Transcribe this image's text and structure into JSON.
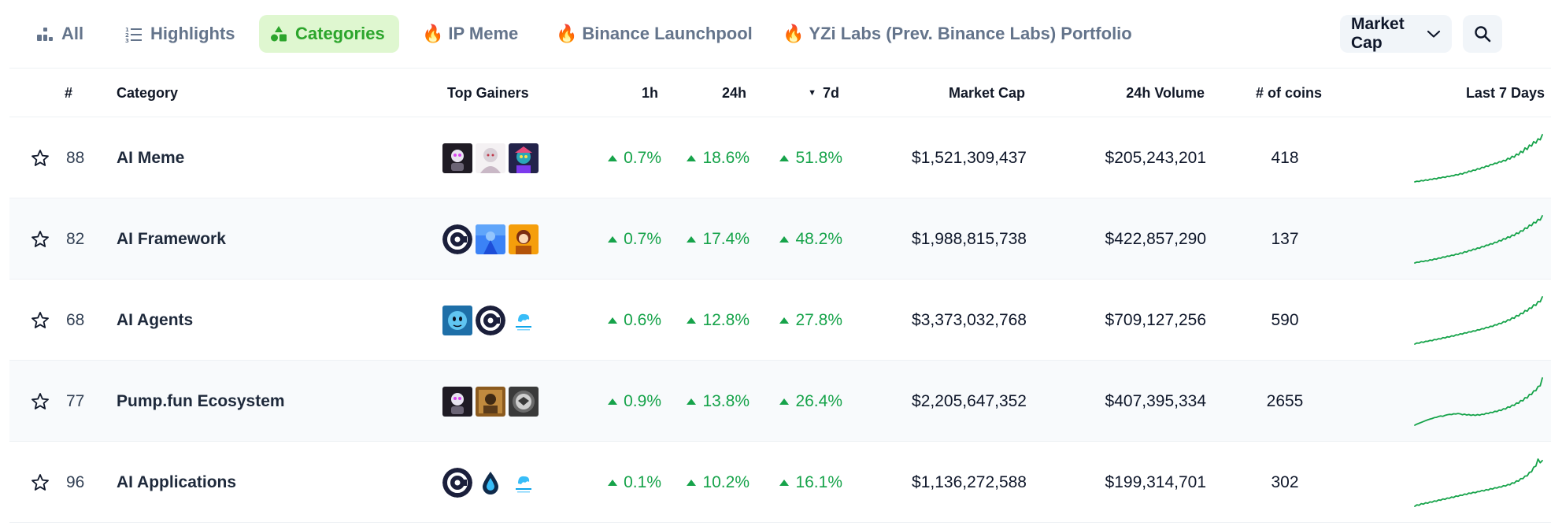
{
  "tabs": [
    {
      "label": "All",
      "icon": "bar-chart-icon",
      "active": false
    },
    {
      "label": "Highlights",
      "icon": "list-ordered-icon",
      "active": false
    },
    {
      "label": "Categories",
      "icon": "shapes-icon",
      "active": true
    },
    {
      "label": "IP Meme",
      "icon": "fire-icon",
      "active": false
    },
    {
      "label": "Binance Launchpool",
      "icon": "fire-icon",
      "active": false
    },
    {
      "label": "YZi Labs (Prev. Binance Labs) Portfolio",
      "icon": "fire-icon",
      "active": false
    }
  ],
  "sort_select": {
    "label": "Market Cap",
    "icon": "chevron-down-icon"
  },
  "search": {
    "icon": "search-icon"
  },
  "colors": {
    "accent": "#2ca52c",
    "accent_bg": "#dff7d0",
    "positive": "#16a34a",
    "muted": "#64748b"
  },
  "table": {
    "headers": {
      "rank": "#",
      "category": "Category",
      "top_gainers": "Top Gainers",
      "h1": "1h",
      "h24": "24h",
      "d7": "7d",
      "d7_sort_indicator": "▼",
      "market_cap": "Market Cap",
      "volume_24h": "24h Volume",
      "coins": "# of coins",
      "last_7_days": "Last 7 Days"
    },
    "rows": [
      {
        "rank": "88",
        "category": "AI Meme",
        "h1": "0.7%",
        "h24": "18.6%",
        "d7": "51.8%",
        "market_cap": "$1,521,309,437",
        "volume": "$205,243,201",
        "coins": "418",
        "gainer_icons": [
          "coin-logo-dark-robot",
          "coin-logo-anime-girl",
          "coin-logo-cyber-character"
        ],
        "sparkline": [
          2,
          3,
          2.6,
          4,
          3.5,
          5,
          4.2,
          6,
          5.5,
          7,
          6.2,
          8,
          7.5,
          9,
          8.4,
          10,
          9.6,
          11,
          10.8,
          12.5,
          12,
          14,
          13.2,
          15.5,
          15,
          17.6,
          16.8,
          19,
          18.5,
          21,
          20.2,
          23,
          22.5,
          25,
          24.2,
          27,
          26.8,
          29,
          28.5,
          31,
          30.4,
          33,
          32.2,
          36,
          34.8,
          39,
          37.5,
          42,
          40.8,
          46,
          44.2,
          51,
          48.6,
          55,
          53.4,
          60,
          57.8,
          64,
          62.5,
          70
        ]
      },
      {
        "rank": "82",
        "category": "AI Framework",
        "h1": "0.7%",
        "h24": "17.4%",
        "d7": "48.2%",
        "market_cap": "$1,988,815,738",
        "volume": "$422,857,290",
        "coins": "137",
        "gainer_icons": [
          "coin-logo-c-circle",
          "coin-logo-blue-figure",
          "coin-logo-orange-character"
        ],
        "sparkline": [
          2,
          3.2,
          3,
          4.5,
          4,
          5.2,
          4.8,
          6.5,
          6,
          7.8,
          7.2,
          9,
          8.6,
          10.5,
          10,
          11.8,
          11.4,
          13,
          12.6,
          14.5,
          14,
          16,
          15.4,
          17.8,
          17.2,
          19.5,
          19,
          21.4,
          20.8,
          23,
          22.6,
          25,
          24.5,
          27,
          26.8,
          29,
          28.4,
          31,
          30.6,
          33.5,
          32.8,
          36,
          35.2,
          38.5,
          37.6,
          41,
          40.2,
          44,
          43,
          47,
          46.5,
          51,
          50.2,
          55,
          54,
          59,
          58,
          63,
          62,
          68
        ]
      },
      {
        "rank": "68",
        "category": "AI Agents",
        "h1": "0.6%",
        "h24": "12.8%",
        "d7": "27.8%",
        "market_cap": "$3,373,032,768",
        "volume": "$709,127,256",
        "coins": "590",
        "gainer_icons": [
          "coin-logo-blue-alien",
          "coin-logo-c-circle",
          "coin-logo-brain-text"
        ],
        "sparkline": [
          2,
          3.5,
          3.2,
          5,
          4.4,
          6,
          5.8,
          7.2,
          6.6,
          8.5,
          8,
          9.6,
          9.2,
          11,
          10.5,
          12.2,
          11.8,
          13.6,
          13,
          15,
          14.6,
          16.4,
          16,
          17.8,
          17.4,
          19.2,
          18.8,
          20.5,
          20.2,
          22,
          21.8,
          23.6,
          23.2,
          25.4,
          25,
          27,
          26.6,
          29,
          28.6,
          31,
          30.6,
          33.4,
          32.8,
          36,
          35.4,
          38.8,
          38,
          42,
          41.2,
          45,
          44.5,
          49,
          48,
          52.5,
          52,
          57,
          56,
          61.5,
          61,
          68
        ]
      },
      {
        "rank": "77",
        "category": "Pump.fun Ecosystem",
        "h1": "0.9%",
        "h24": "13.8%",
        "d7": "26.4%",
        "market_cap": "$2,205,647,352",
        "volume": "$407,395,334",
        "coins": "2655",
        "gainer_icons": [
          "coin-logo-dark-robot",
          "coin-logo-golden-frame",
          "coin-logo-seal-emblem"
        ],
        "sparkline": [
          2,
          3.5,
          4.8,
          6,
          7.2,
          8.4,
          9.6,
          10.5,
          11.4,
          12.6,
          13,
          14.2,
          15,
          14.4,
          15.8,
          16.5,
          17.2,
          16.8,
          18,
          17.6,
          18.4,
          17.8,
          16.6,
          17.5,
          16.2,
          17,
          15.8,
          16.6,
          15.6,
          16.8,
          16,
          17.4,
          17,
          18.8,
          18.2,
          20,
          19.6,
          21.5,
          21,
          23,
          22.6,
          25,
          24.6,
          27.5,
          27,
          30,
          29.6,
          33,
          32.6,
          36.5,
          36,
          40.5,
          40,
          45,
          44.8,
          50,
          50.2,
          56,
          57,
          68
        ]
      },
      {
        "rank": "96",
        "category": "AI Applications",
        "h1": "0.1%",
        "h24": "10.2%",
        "d7": "16.1%",
        "market_cap": "$1,136,272,588",
        "volume": "$199,314,701",
        "coins": "302",
        "gainer_icons": [
          "coin-logo-c-circle",
          "coin-logo-blue-drop",
          "coin-logo-brain-text"
        ],
        "sparkline": [
          2,
          4,
          3.4,
          5.6,
          5,
          6.8,
          6.2,
          8,
          7.6,
          9.4,
          8.8,
          10.6,
          10.2,
          12,
          11.4,
          13.2,
          12.8,
          14.6,
          14,
          16,
          15.4,
          17.2,
          16.8,
          18.6,
          18,
          20,
          19.4,
          21,
          20.4,
          22,
          21.8,
          23.4,
          22.8,
          24.6,
          24,
          26,
          25.4,
          27.2,
          26.6,
          28.4,
          28,
          30,
          29.4,
          31.6,
          31,
          33.8,
          33.4,
          36.5,
          36,
          39.5,
          39.4,
          43,
          43.2,
          48,
          48.6,
          55,
          56.5,
          66,
          61,
          64
        ]
      }
    ]
  }
}
